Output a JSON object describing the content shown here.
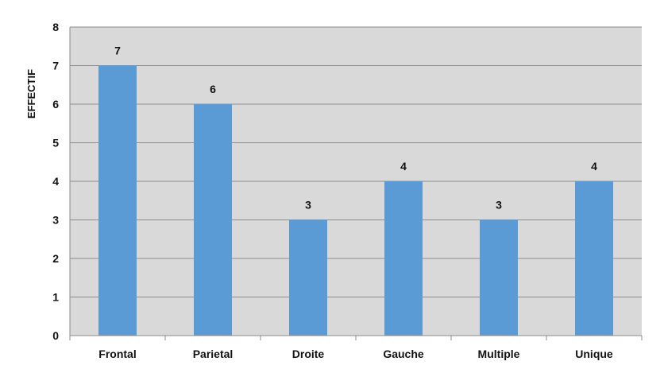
{
  "chart_data": {
    "type": "bar",
    "title": "",
    "ylabel": "EFFECTIF",
    "xlabel": "",
    "categories": [
      "Frontal",
      "Parietal",
      "Droite",
      "Gauche",
      "Multiple",
      "Unique"
    ],
    "values": [
      7,
      6,
      3,
      4,
      3,
      4
    ],
    "data_labels": [
      "7",
      "6",
      "3",
      "4",
      "3",
      "4"
    ],
    "ylim": [
      0,
      8
    ],
    "yticks": [
      "0",
      "1",
      "2",
      "3",
      "4",
      "5",
      "6",
      "7",
      "8"
    ],
    "grid": true,
    "legend": "none",
    "colors": {
      "bar": "#5b9bd5",
      "plot_background": "#d9d9d9",
      "gridline": "#8c8c8c",
      "page_background": "#ffffff"
    }
  }
}
